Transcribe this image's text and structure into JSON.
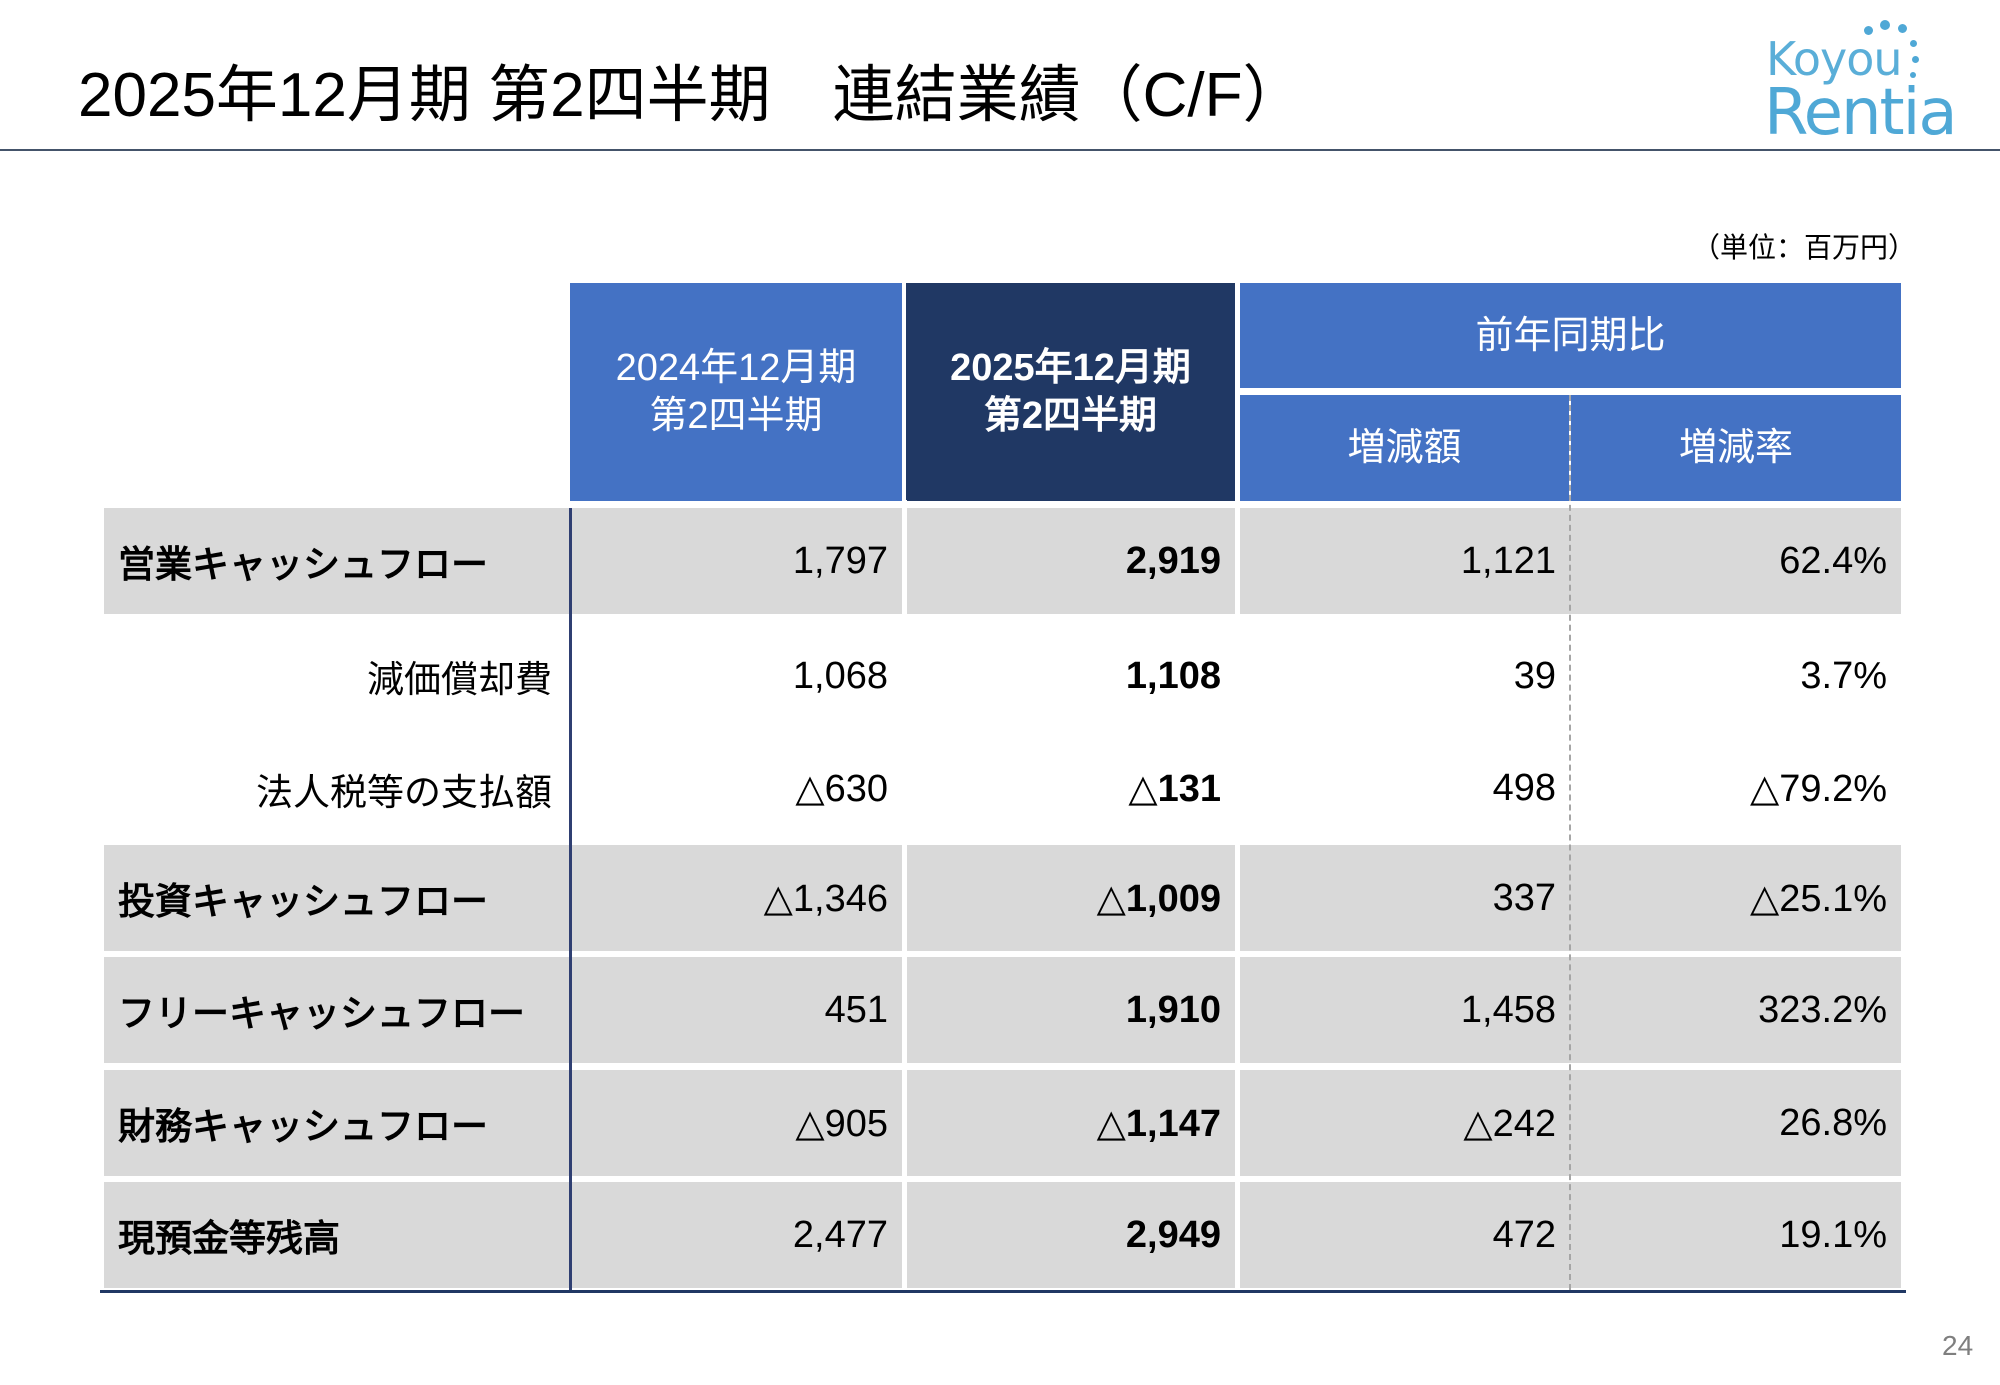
{
  "slide": {
    "title": "2025年12月期 第2四半期　連結業績（C/F）",
    "unit": "（単位：百万円）",
    "page_number": "24"
  },
  "logo": {
    "line1": "Koyou",
    "line2": "Rentia"
  },
  "table": {
    "headers": {
      "prev_line1": "2024年12月期",
      "prev_line2": "第2四半期",
      "curr_line1": "2025年12月期",
      "curr_line2": "第2四半期",
      "group": "前年同期比",
      "diff": "増減額",
      "rate": "増減率"
    },
    "rows": [
      {
        "label": "営業キャッシュフロー",
        "prev": "1,797",
        "curr": "2,919",
        "diff": "1,121",
        "rate": "62.4%"
      },
      {
        "label": "減価償却費",
        "prev": "1,068",
        "curr": "1,108",
        "diff": "39",
        "rate": "3.7%"
      },
      {
        "label": "法人税等の支払額",
        "prev": "△630",
        "curr": "△131",
        "diff": "498",
        "rate": "△79.2%"
      },
      {
        "label": "投資キャッシュフロー",
        "prev": "△1,346",
        "curr": "△1,009",
        "diff": "337",
        "rate": "△25.1%"
      },
      {
        "label": "フリーキャッシュフロー",
        "prev": "451",
        "curr": "1,910",
        "diff": "1,458",
        "rate": "323.2%"
      },
      {
        "label": "財務キャッシュフロー",
        "prev": "△905",
        "curr": "△1,147",
        "diff": "△242",
        "rate": "26.8%"
      },
      {
        "label": "現預金等残高",
        "prev": "2,477",
        "curr": "2,949",
        "diff": "472",
        "rate": "19.1%"
      }
    ]
  },
  "colors": {
    "header_blue": "#4472c4",
    "header_navy": "#203864",
    "row_shade": "#d9d9d9",
    "logo_blue": "#4fa8d6"
  }
}
